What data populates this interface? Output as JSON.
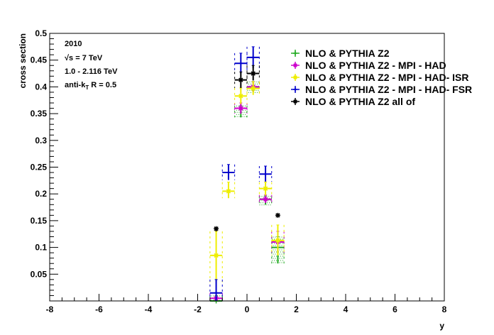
{
  "chart_data": {
    "type": "scatter",
    "xlabel": "y",
    "ylabel": "cross section",
    "xlim": [
      -8,
      8
    ],
    "ylim": [
      0,
      0.5
    ],
    "x_ticks": [
      -8,
      -6,
      -4,
      -2,
      0,
      2,
      4,
      6,
      8
    ],
    "y_ticks": [
      0.05,
      0.1,
      0.15,
      0.2,
      0.25,
      0.3,
      0.35,
      0.4,
      0.45,
      0.5
    ],
    "info": {
      "year": "2010",
      "energy": "√s = 7 TeV",
      "pt_range": "1.0 - 2.116 TeV",
      "algo_prefix": "anti-k",
      "algo_sub": "T",
      "algo_suffix": " R = 0.5"
    },
    "legend_position": "top-right",
    "series": [
      {
        "name": "NLO & PYTHIA Z2",
        "color": "#22aa22",
        "marker": "plus",
        "points": [
          {
            "x": -1.25,
            "y": 0.0,
            "xerr": 0.25,
            "ylo": 0.0,
            "yhi": 0.01
          },
          {
            "x": -0.25,
            "y": 0.36,
            "xerr": 0.25,
            "ylo": 0.343,
            "yhi": 0.365
          },
          {
            "x": 0.25,
            "y": 0.4,
            "xerr": 0.25,
            "ylo": 0.39,
            "yhi": 0.41
          },
          {
            "x": 0.75,
            "y": 0.19,
            "xerr": 0.25,
            "ylo": 0.18,
            "yhi": 0.196
          },
          {
            "x": 1.25,
            "y": 0.1,
            "xerr": 0.25,
            "ylo": 0.07,
            "yhi": 0.12
          }
        ]
      },
      {
        "name": "NLO & PYTHIA Z2 - MPI - HAD",
        "color": "#cc00cc",
        "marker": "star",
        "points": [
          {
            "x": -1.25,
            "y": 0.005,
            "xerr": 0.25,
            "ylo": 0.0,
            "yhi": 0.015
          },
          {
            "x": -0.25,
            "y": 0.36,
            "xerr": 0.25,
            "ylo": 0.35,
            "yhi": 0.37
          },
          {
            "x": 0.25,
            "y": 0.4,
            "xerr": 0.25,
            "ylo": 0.39,
            "yhi": 0.41
          },
          {
            "x": 0.75,
            "y": 0.19,
            "xerr": 0.25,
            "ylo": 0.183,
            "yhi": 0.198
          },
          {
            "x": 1.25,
            "y": 0.11,
            "xerr": 0.25,
            "ylo": 0.09,
            "yhi": 0.13
          }
        ]
      },
      {
        "name": "NLO & PYTHIA Z2 - MPI - HAD- ISR",
        "color": "#eeee00",
        "marker": "star",
        "points": [
          {
            "x": -1.25,
            "y": 0.085,
            "xerr": 0.25,
            "ylo": 0.035,
            "yhi": 0.13
          },
          {
            "x": -0.75,
            "y": 0.205,
            "xerr": 0.25,
            "ylo": 0.192,
            "yhi": 0.222
          },
          {
            "x": -0.25,
            "y": 0.383,
            "xerr": 0.25,
            "ylo": 0.368,
            "yhi": 0.398
          },
          {
            "x": 0.25,
            "y": 0.397,
            "xerr": 0.25,
            "ylo": 0.385,
            "yhi": 0.41
          },
          {
            "x": 0.75,
            "y": 0.21,
            "xerr": 0.25,
            "ylo": 0.197,
            "yhi": 0.222
          },
          {
            "x": 1.25,
            "y": 0.113,
            "xerr": 0.25,
            "ylo": 0.085,
            "yhi": 0.142
          }
        ]
      },
      {
        "name": "NLO & PYTHIA Z2 - MPI - HAD- FSR",
        "color": "#0000cc",
        "marker": "plus",
        "points": [
          {
            "x": -1.25,
            "y": 0.015,
            "xerr": 0.25,
            "ylo": 0.0,
            "yhi": 0.04
          },
          {
            "x": -0.75,
            "y": 0.24,
            "xerr": 0.25,
            "ylo": 0.226,
            "yhi": 0.255
          },
          {
            "x": -0.25,
            "y": 0.444,
            "xerr": 0.25,
            "ylo": 0.425,
            "yhi": 0.463
          },
          {
            "x": 0.25,
            "y": 0.455,
            "xerr": 0.25,
            "ylo": 0.435,
            "yhi": 0.475
          },
          {
            "x": 0.75,
            "y": 0.237,
            "xerr": 0.25,
            "ylo": 0.223,
            "yhi": 0.252
          }
        ]
      },
      {
        "name": "NLO & PYTHIA Z2 all of",
        "color": "#000000",
        "marker": "star",
        "points": [
          {
            "x": -1.25,
            "y": 0.135,
            "xerr": 0.0,
            "ylo": 0.13,
            "yhi": 0.137
          },
          {
            "x": -0.25,
            "y": 0.413,
            "xerr": 0.25,
            "ylo": 0.398,
            "yhi": 0.428
          },
          {
            "x": 0.25,
            "y": 0.425,
            "xerr": 0.25,
            "ylo": 0.412,
            "yhi": 0.44
          },
          {
            "x": 1.25,
            "y": 0.16,
            "xerr": 0.0,
            "ylo": 0.157,
            "yhi": 0.162
          }
        ]
      }
    ]
  }
}
